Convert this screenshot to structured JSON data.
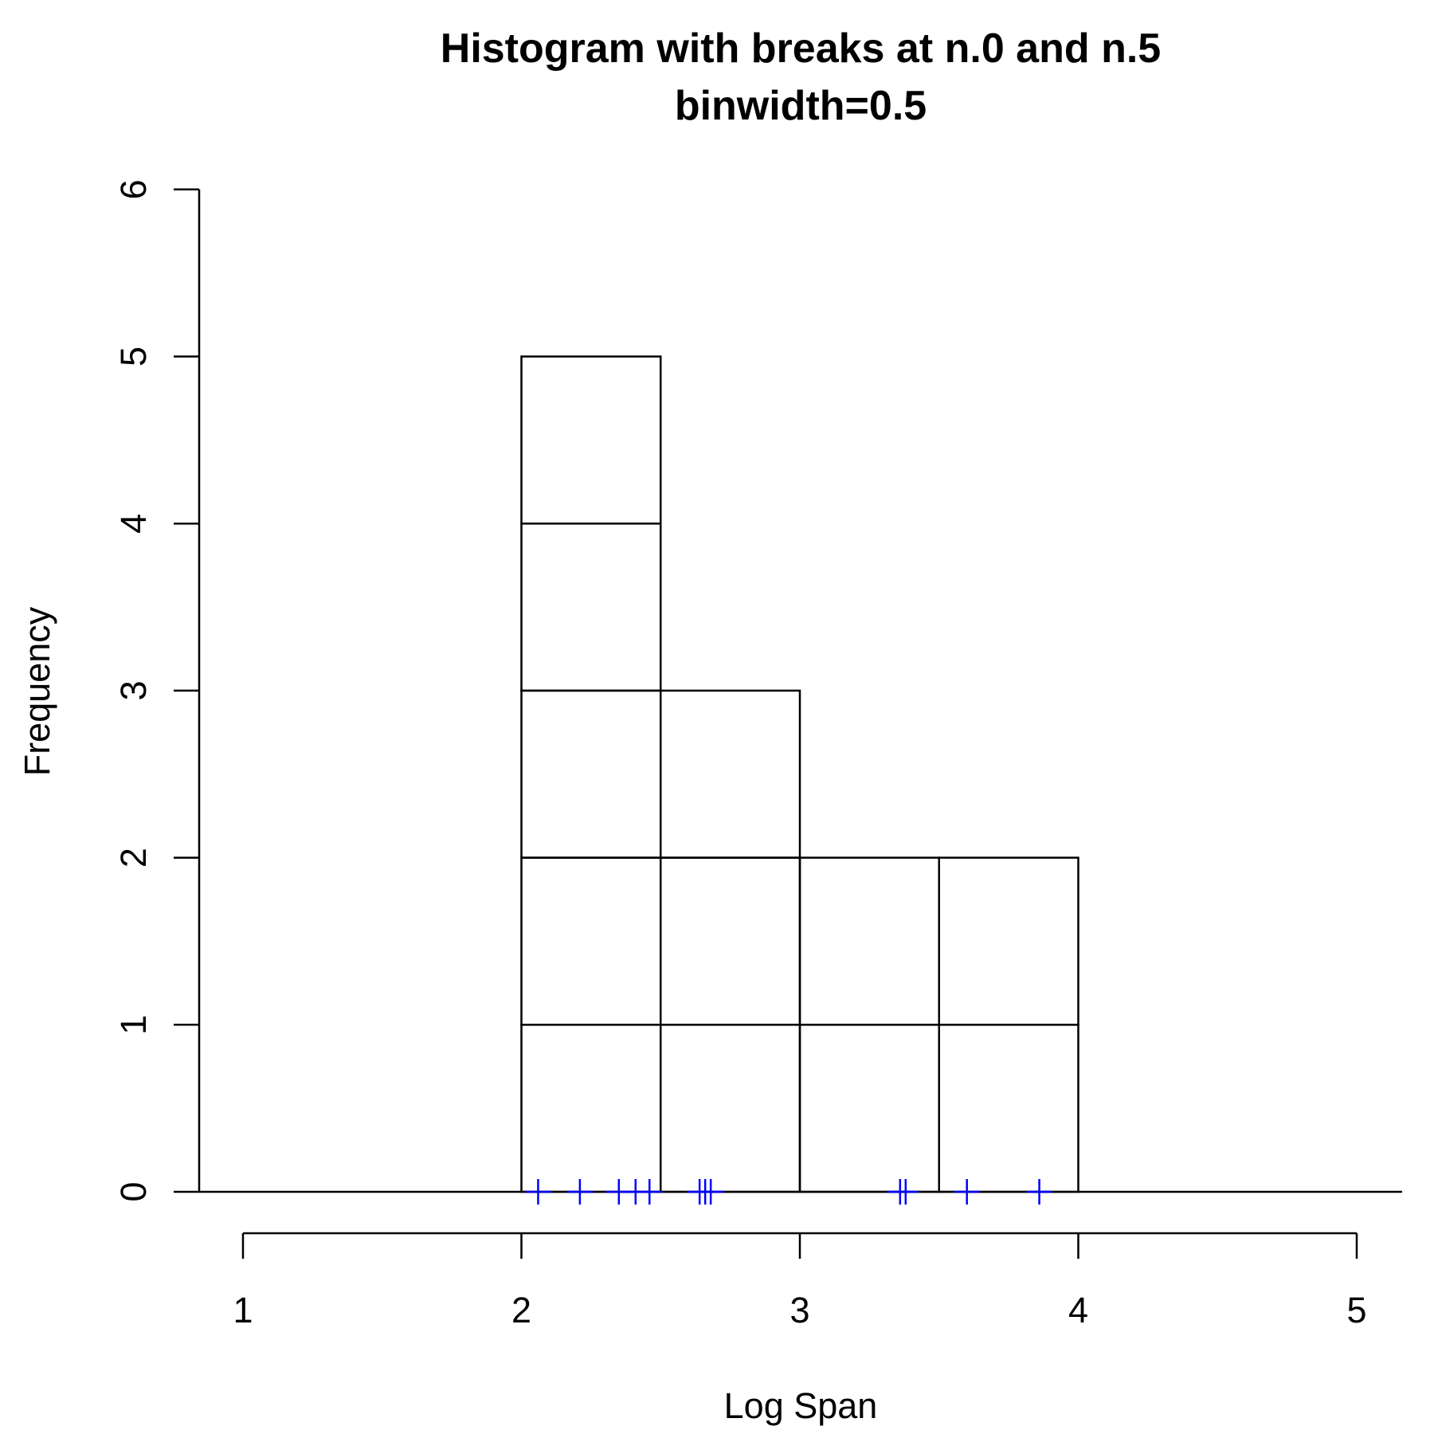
{
  "chart_data": {
    "type": "bar",
    "title": "Histogram with breaks at n.0 and n.5",
    "subtitle": "binwidth=0.5",
    "xlabel": "Log Span",
    "ylabel": "Frequency",
    "xlim": [
      1,
      5
    ],
    "ylim": [
      0,
      6
    ],
    "x_ticks": [
      "1",
      "2",
      "3",
      "4",
      "5"
    ],
    "y_ticks": [
      "0",
      "1",
      "2",
      "3",
      "4",
      "5",
      "6"
    ],
    "bins": [
      {
        "from": 2.0,
        "to": 2.5,
        "count": 5
      },
      {
        "from": 2.5,
        "to": 3.0,
        "count": 3
      },
      {
        "from": 3.0,
        "to": 3.5,
        "count": 2
      },
      {
        "from": 3.5,
        "to": 4.0,
        "count": 2
      }
    ],
    "rug": [
      2.06,
      2.21,
      2.35,
      2.41,
      2.46,
      2.64,
      2.66,
      2.68,
      3.36,
      3.38,
      3.6,
      3.86
    ],
    "rug_color": "#0000ff",
    "bar_stroke": "#000000",
    "grid": false,
    "legend": "none"
  }
}
